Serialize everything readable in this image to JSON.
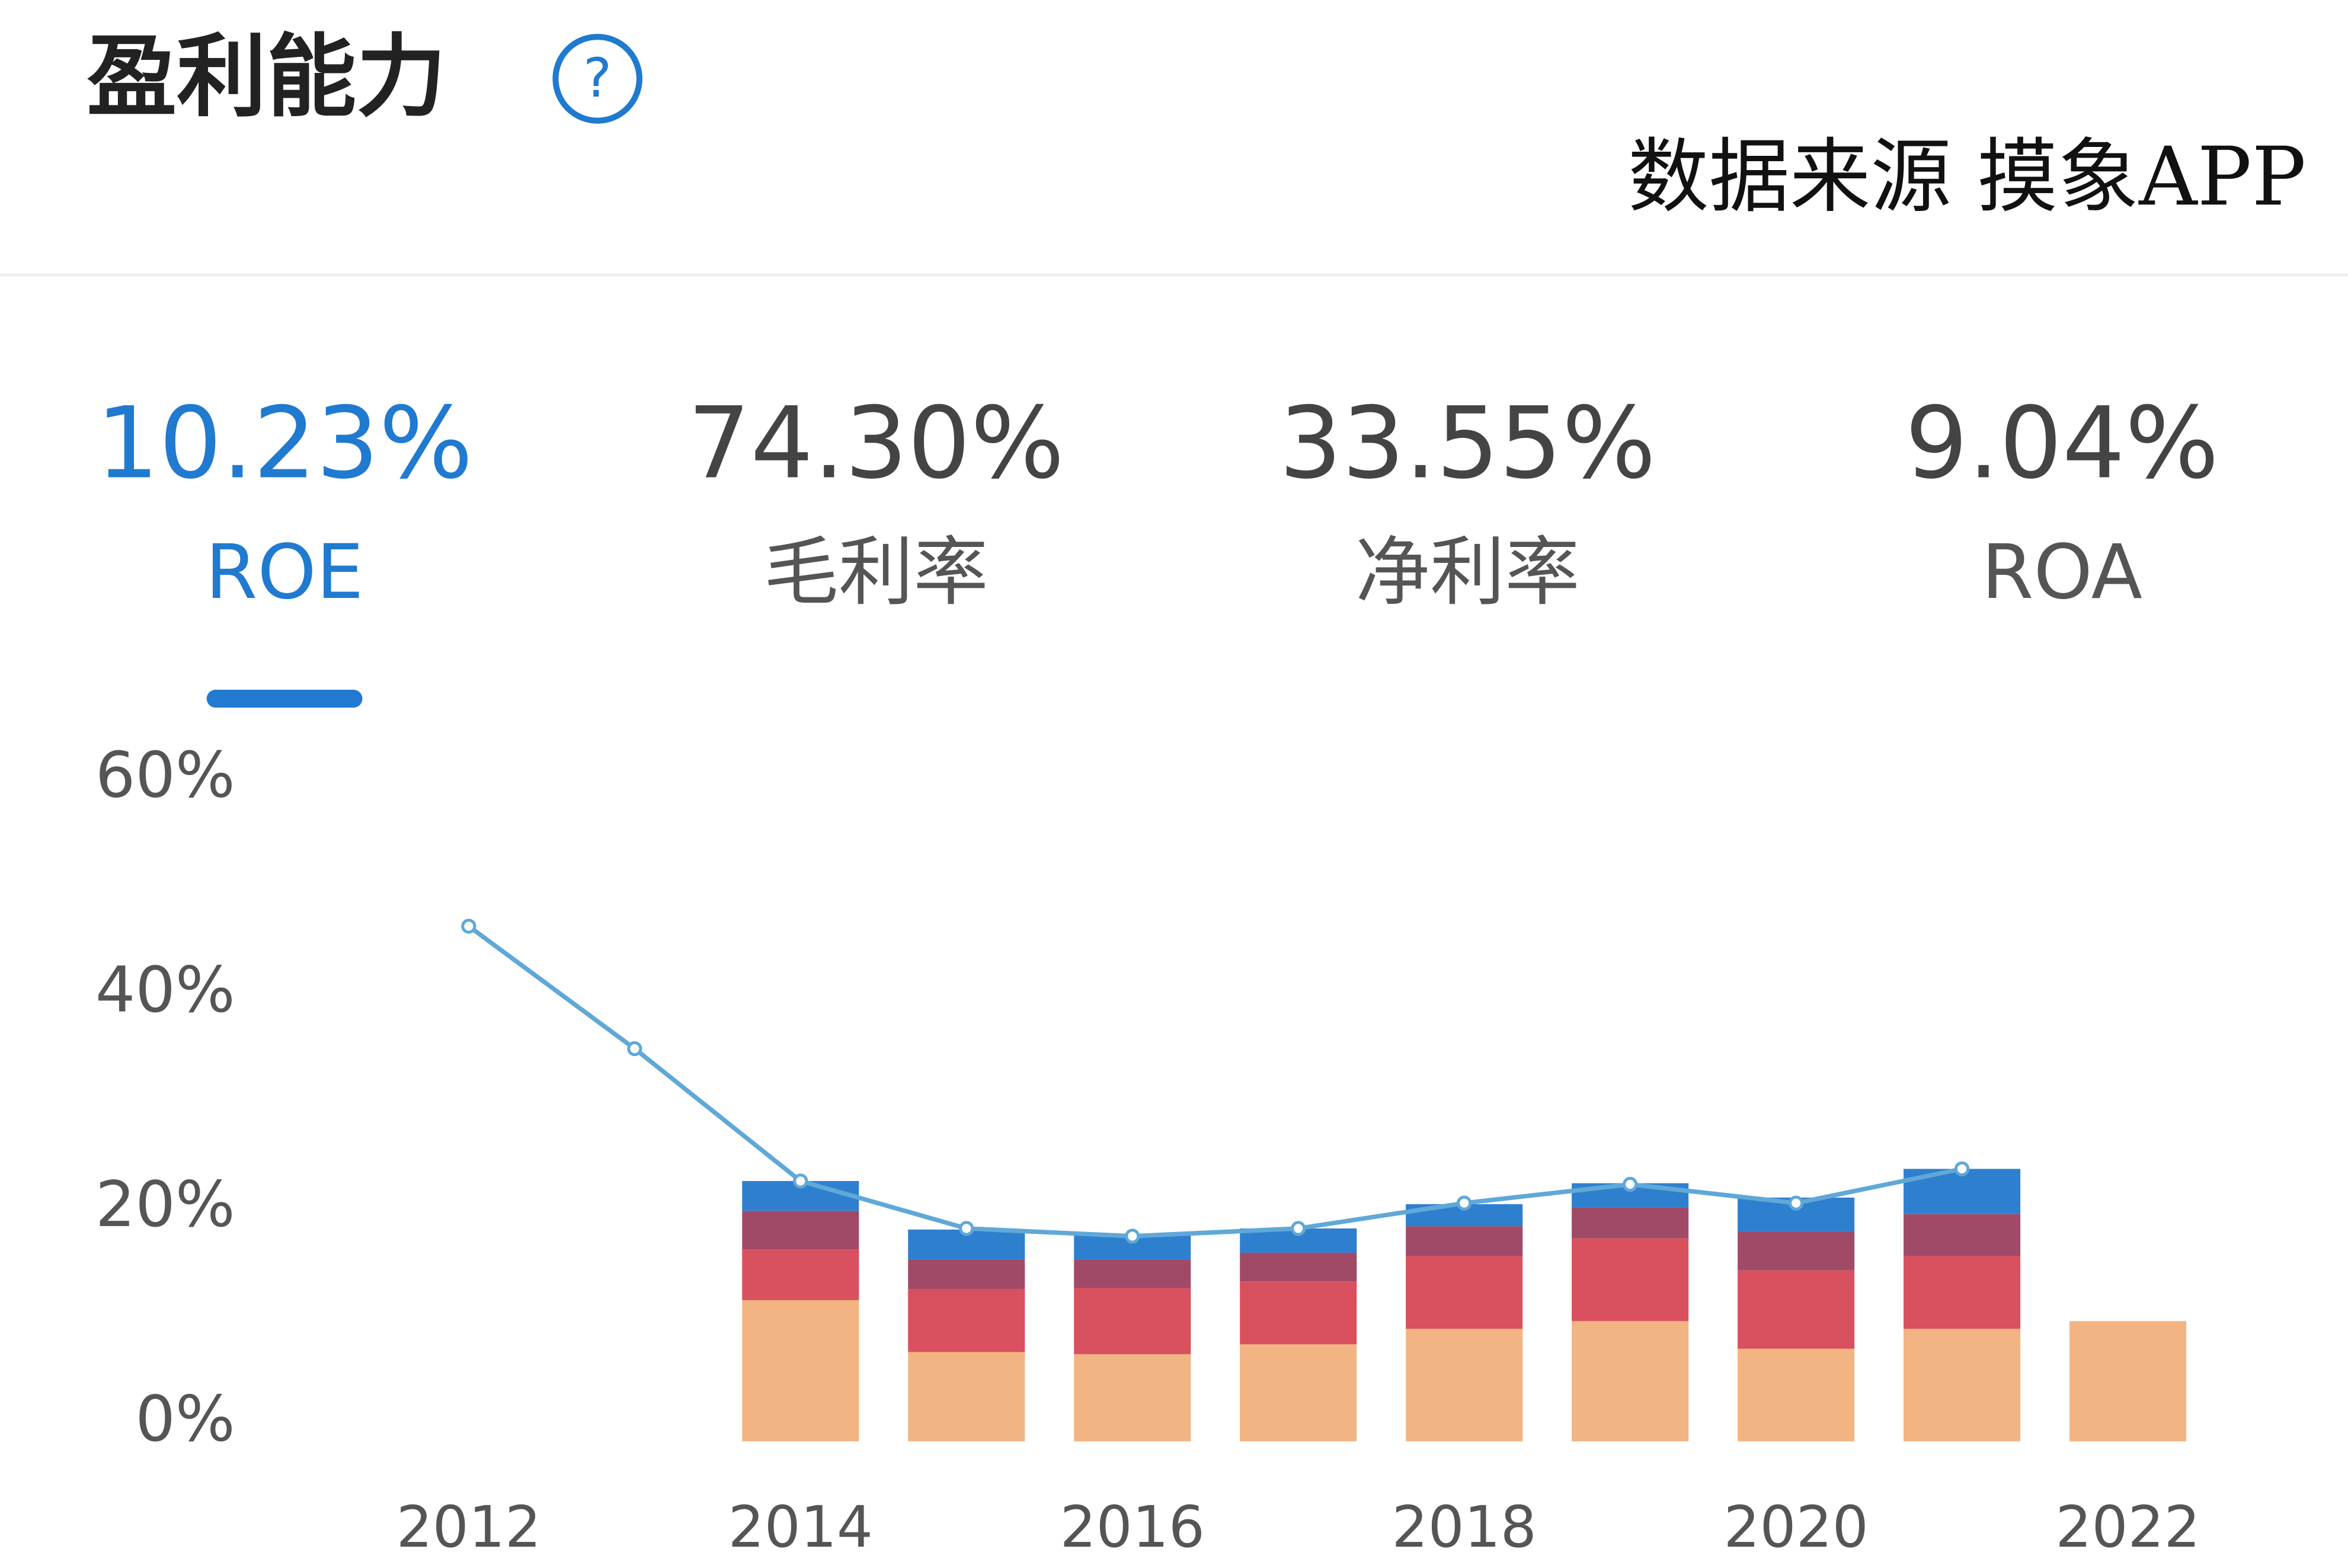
{
  "header": {
    "title": "盈利能力",
    "help_icon": "?",
    "source": "数据来源 摸象APP"
  },
  "tabs": [
    {
      "value": "10.23%",
      "label": "ROE",
      "active": true
    },
    {
      "value": "74.30%",
      "label": "毛利率",
      "active": false
    },
    {
      "value": "33.55%",
      "label": "净利率",
      "active": false
    },
    {
      "value": "9.04%",
      "label": "ROA",
      "active": false
    }
  ],
  "chart_data": {
    "type": "stacked-bar-line",
    "x": [
      2012,
      2013,
      2014,
      2015,
      2016,
      2017,
      2018,
      2019,
      2020,
      2021,
      2022
    ],
    "xlim": [
      2012,
      2022
    ],
    "xticks": [
      2012,
      2014,
      2016,
      2018,
      2020,
      2022
    ],
    "ylim": [
      0,
      60
    ],
    "yticks": [
      {
        "value": 0,
        "label": "0%"
      },
      {
        "value": 20,
        "label": "20%"
      },
      {
        "value": 40,
        "label": "40%"
      },
      {
        "value": 60,
        "label": "60%"
      }
    ],
    "series": [
      {
        "color": "#f2b482",
        "values": [
          null,
          null,
          12.8,
          8.1,
          7.9,
          8.8,
          10.2,
          10.9,
          8.4,
          10.2,
          10.9
        ]
      },
      {
        "color": "#d9505f",
        "values": [
          null,
          null,
          4.6,
          5.7,
          6.0,
          5.7,
          6.6,
          7.5,
          7.1,
          6.6,
          null
        ]
      },
      {
        "color": "#a04a68",
        "values": [
          null,
          null,
          3.5,
          2.7,
          2.6,
          2.6,
          2.7,
          2.8,
          3.5,
          3.8,
          null
        ]
      },
      {
        "color": "#2f7fcf",
        "values": [
          null,
          null,
          2.7,
          2.7,
          2.2,
          2.2,
          2.0,
          2.2,
          3.1,
          4.1,
          null
        ]
      }
    ],
    "lines": [
      {
        "color": "#5fa8d8",
        "values": [
          46.7,
          35.6,
          23.6,
          19.3,
          18.6,
          19.3,
          21.6,
          23.3,
          21.6,
          24.7,
          null
        ]
      }
    ]
  }
}
